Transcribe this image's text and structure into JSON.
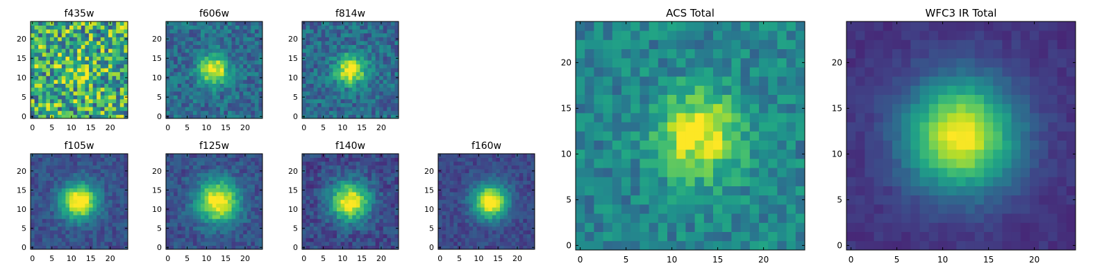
{
  "chart_data": [
    {
      "type": "heatmap",
      "title": "f435w",
      "xticks": [
        "0",
        "5",
        "10",
        "15",
        "20"
      ],
      "yticks": [
        "0",
        "5",
        "10",
        "15",
        "20"
      ],
      "xlim": [
        0,
        25
      ],
      "ylim": [
        0,
        25
      ],
      "grid_size": 25,
      "peak": [
        12,
        12
      ],
      "core_width": 3.0,
      "core_amplitude": 0.15,
      "noise_level": 0.75,
      "base_level": 0.62
    },
    {
      "type": "heatmap",
      "title": "f606w",
      "xticks": [
        "0",
        "5",
        "10",
        "15",
        "20"
      ],
      "yticks": [
        "0",
        "5",
        "10",
        "15",
        "20"
      ],
      "xlim": [
        0,
        25
      ],
      "ylim": [
        0,
        25
      ],
      "grid_size": 25,
      "peak": [
        12,
        12
      ],
      "core_width": 2.6,
      "core_amplitude": 0.7,
      "noise_level": 0.3,
      "base_level": 0.35
    },
    {
      "type": "heatmap",
      "title": "f814w",
      "xticks": [
        "0",
        "5",
        "10",
        "15",
        "20"
      ],
      "yticks": [
        "0",
        "5",
        "10",
        "15",
        "20"
      ],
      "xlim": [
        0,
        25
      ],
      "ylim": [
        0,
        25
      ],
      "grid_size": 25,
      "peak": [
        12,
        12
      ],
      "core_width": 2.6,
      "core_amplitude": 0.7,
      "noise_level": 0.3,
      "base_level": 0.35
    },
    {
      "type": "heatmap",
      "title": "f105w",
      "xticks": [
        "0",
        "5",
        "10",
        "15",
        "20"
      ],
      "yticks": [
        "0",
        "5",
        "10",
        "15",
        "20"
      ],
      "xlim": [
        0,
        25
      ],
      "ylim": [
        0,
        25
      ],
      "grid_size": 25,
      "peak": [
        12,
        12
      ],
      "core_width": 3.2,
      "core_amplitude": 0.85,
      "noise_level": 0.18,
      "base_level": 0.25
    },
    {
      "type": "heatmap",
      "title": "f125w",
      "xticks": [
        "0",
        "5",
        "10",
        "15",
        "20"
      ],
      "yticks": [
        "0",
        "5",
        "10",
        "15",
        "20"
      ],
      "xlim": [
        0,
        25
      ],
      "ylim": [
        0,
        25
      ],
      "grid_size": 25,
      "peak": [
        13,
        12
      ],
      "core_width": 3.8,
      "core_amplitude": 0.8,
      "noise_level": 0.2,
      "base_level": 0.25
    },
    {
      "type": "heatmap",
      "title": "f140w",
      "xticks": [
        "0",
        "5",
        "10",
        "15",
        "20"
      ],
      "yticks": [
        "0",
        "5",
        "10",
        "15",
        "20"
      ],
      "xlim": [
        0,
        25
      ],
      "ylim": [
        0,
        25
      ],
      "grid_size": 25,
      "peak": [
        12,
        12
      ],
      "core_width": 3.6,
      "core_amplitude": 0.8,
      "noise_level": 0.22,
      "base_level": 0.22
    },
    {
      "type": "heatmap",
      "title": "f160w",
      "xticks": [
        "0",
        "5",
        "10",
        "15",
        "20"
      ],
      "yticks": [
        "0",
        "5",
        "10",
        "15",
        "20"
      ],
      "xlim": [
        0,
        25
      ],
      "ylim": [
        0,
        25
      ],
      "grid_size": 25,
      "peak": [
        13,
        12
      ],
      "core_width": 3.1,
      "core_amplitude": 0.85,
      "noise_level": 0.16,
      "base_level": 0.22
    },
    {
      "type": "heatmap",
      "title": "ACS Total",
      "xticks": [
        "0",
        "5",
        "10",
        "15",
        "20"
      ],
      "yticks": [
        "0",
        "5",
        "10",
        "15",
        "20"
      ],
      "xlim": [
        0,
        25
      ],
      "ylim": [
        0,
        25
      ],
      "grid_size": 25,
      "peak": [
        13,
        12
      ],
      "core_width": 3.3,
      "core_amplitude": 0.55,
      "noise_level": 0.28,
      "base_level": 0.45
    },
    {
      "type": "heatmap",
      "title": "WFC3 IR Total",
      "xticks": [
        "0",
        "5",
        "10",
        "15",
        "20"
      ],
      "yticks": [
        "0",
        "5",
        "10",
        "15",
        "20"
      ],
      "xlim": [
        0,
        25
      ],
      "ylim": [
        0,
        25
      ],
      "grid_size": 25,
      "peak": [
        12,
        12
      ],
      "core_width": 4.2,
      "core_amplitude": 0.85,
      "noise_level": 0.08,
      "base_level": 0.15
    }
  ],
  "colormap": "viridis",
  "colors": {
    "axis": "#000000",
    "background": "#ffffff"
  }
}
